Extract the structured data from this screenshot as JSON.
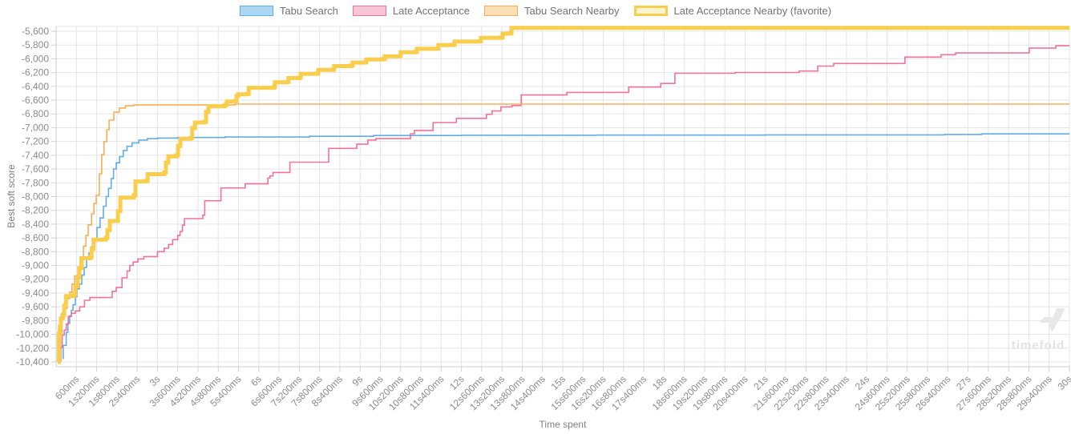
{
  "watermark": {
    "text": "timefold"
  },
  "chart_data": {
    "type": "line",
    "title": "",
    "xlabel": "Time spent",
    "ylabel": "Best soft score",
    "line_style": "step-after",
    "grid": true,
    "legend_position": "top",
    "grid_color": "#e5e5e5",
    "axis_color": "#cfcfcf",
    "tick_text_color": "#8b8b8b",
    "xlim": [
      0,
      30
    ],
    "ylim": [
      -10470,
      -5500
    ],
    "x_ticks": [
      {
        "t": 0.6,
        "label": "600ms"
      },
      {
        "t": 1.2,
        "label": "1s200ms"
      },
      {
        "t": 1.8,
        "label": "1s800ms"
      },
      {
        "t": 2.4,
        "label": "2s400ms"
      },
      {
        "t": 3,
        "label": "3s"
      },
      {
        "t": 3.6,
        "label": "3s600ms"
      },
      {
        "t": 4.2,
        "label": "4s200ms"
      },
      {
        "t": 4.8,
        "label": "4s800ms"
      },
      {
        "t": 5.4,
        "label": "5s400ms"
      },
      {
        "t": 6,
        "label": "6s"
      },
      {
        "t": 6.6,
        "label": "6s600ms"
      },
      {
        "t": 7.2,
        "label": "7s200ms"
      },
      {
        "t": 7.8,
        "label": "7s800ms"
      },
      {
        "t": 8.4,
        "label": "8s400ms"
      },
      {
        "t": 9,
        "label": "9s"
      },
      {
        "t": 9.6,
        "label": "9s600ms"
      },
      {
        "t": 10.2,
        "label": "10s200ms"
      },
      {
        "t": 10.8,
        "label": "10s800ms"
      },
      {
        "t": 11.4,
        "label": "11s400ms"
      },
      {
        "t": 12,
        "label": "12s"
      },
      {
        "t": 12.6,
        "label": "12s600ms"
      },
      {
        "t": 13.2,
        "label": "13s200ms"
      },
      {
        "t": 13.8,
        "label": "13s800ms"
      },
      {
        "t": 14.4,
        "label": "14s400ms"
      },
      {
        "t": 15,
        "label": "15s"
      },
      {
        "t": 15.6,
        "label": "15s600ms"
      },
      {
        "t": 16.2,
        "label": "16s200ms"
      },
      {
        "t": 16.8,
        "label": "16s800ms"
      },
      {
        "t": 17.4,
        "label": "17s400ms"
      },
      {
        "t": 18,
        "label": "18s"
      },
      {
        "t": 18.6,
        "label": "18s600ms"
      },
      {
        "t": 19.2,
        "label": "19s200ms"
      },
      {
        "t": 19.8,
        "label": "19s800ms"
      },
      {
        "t": 20.4,
        "label": "20s400ms"
      },
      {
        "t": 21,
        "label": "21s"
      },
      {
        "t": 21.6,
        "label": "21s600ms"
      },
      {
        "t": 22.2,
        "label": "22s200ms"
      },
      {
        "t": 22.8,
        "label": "22s800ms"
      },
      {
        "t": 23.4,
        "label": "23s400ms"
      },
      {
        "t": 24,
        "label": "24s"
      },
      {
        "t": 24.6,
        "label": "24s600ms"
      },
      {
        "t": 25.2,
        "label": "25s200ms"
      },
      {
        "t": 25.8,
        "label": "25s800ms"
      },
      {
        "t": 26.4,
        "label": "26s400ms"
      },
      {
        "t": 27,
        "label": "27s"
      },
      {
        "t": 27.6,
        "label": "27s600ms"
      },
      {
        "t": 28.2,
        "label": "28s200ms"
      },
      {
        "t": 28.8,
        "label": "28s800ms"
      },
      {
        "t": 29.4,
        "label": "29s400ms"
      },
      {
        "t": 30,
        "label": "30s"
      }
    ],
    "y_ticks": [
      {
        "v": -5600,
        "label": "-5,600"
      },
      {
        "v": -5800,
        "label": "-5,800"
      },
      {
        "v": -6000,
        "label": "-6,000"
      },
      {
        "v": -6200,
        "label": "-6,200"
      },
      {
        "v": -6400,
        "label": "-6,400"
      },
      {
        "v": -6600,
        "label": "-6,600"
      },
      {
        "v": -6800,
        "label": "-6,800"
      },
      {
        "v": -7000,
        "label": "-7,000"
      },
      {
        "v": -7200,
        "label": "-7,200"
      },
      {
        "v": -7400,
        "label": "-7,400"
      },
      {
        "v": -7600,
        "label": "-7,600"
      },
      {
        "v": -7800,
        "label": "-7,800"
      },
      {
        "v": -8000,
        "label": "-8,000"
      },
      {
        "v": -8200,
        "label": "-8,200"
      },
      {
        "v": -8400,
        "label": "-8,400"
      },
      {
        "v": -8600,
        "label": "-8,600"
      },
      {
        "v": -8800,
        "label": "-8,800"
      },
      {
        "v": -9000,
        "label": "-9,000"
      },
      {
        "v": -9200,
        "label": "-9,200"
      },
      {
        "v": -9400,
        "label": "-9,400"
      },
      {
        "v": -9600,
        "label": "-9,600"
      },
      {
        "v": -9800,
        "label": "-9,800"
      },
      {
        "v": -10000,
        "label": "-10,000"
      },
      {
        "v": -10200,
        "label": "-10,200"
      },
      {
        "v": -10400,
        "label": "-10,400"
      }
    ],
    "series": [
      {
        "name": "Tabu Search",
        "color": "#62ade5",
        "fill": "#abd6f5",
        "width": 1.6,
        "border": 1.5,
        "points": [
          [
            0.19,
            -10350
          ],
          [
            0.21,
            -10160
          ],
          [
            0.3,
            -9970
          ],
          [
            0.35,
            -9840
          ],
          [
            0.4,
            -9730
          ],
          [
            0.45,
            -9650
          ],
          [
            0.5,
            -9570
          ],
          [
            0.57,
            -9450
          ],
          [
            0.62,
            -9340
          ],
          [
            0.69,
            -9270
          ],
          [
            0.76,
            -9140
          ],
          [
            0.83,
            -9030
          ],
          [
            0.9,
            -8900
          ],
          [
            0.97,
            -8820
          ],
          [
            1.04,
            -8730
          ],
          [
            1.12,
            -8610
          ],
          [
            1.21,
            -8450
          ],
          [
            1.3,
            -8310
          ],
          [
            1.4,
            -8140
          ],
          [
            1.48,
            -8000
          ],
          [
            1.55,
            -7880
          ],
          [
            1.63,
            -7740
          ],
          [
            1.7,
            -7600
          ],
          [
            1.78,
            -7510
          ],
          [
            1.88,
            -7420
          ],
          [
            1.99,
            -7330
          ],
          [
            2.1,
            -7270
          ],
          [
            2.25,
            -7220
          ],
          [
            2.45,
            -7180
          ],
          [
            2.7,
            -7160
          ],
          [
            3.0,
            -7150
          ],
          [
            3.6,
            -7142
          ],
          [
            5.0,
            -7135
          ],
          [
            7.5,
            -7125
          ],
          [
            9.4,
            -7113
          ],
          [
            12.0,
            -7110
          ],
          [
            16.0,
            -7107
          ],
          [
            21.0,
            -7104
          ],
          [
            26.3,
            -7098
          ],
          [
            27.4,
            -7090
          ]
        ]
      },
      {
        "name": "Late Acceptance",
        "color": "#f1729a",
        "fill": "#f9c4d4",
        "width": 1.6,
        "border": 1.5,
        "points": [
          [
            0.1,
            -10380
          ],
          [
            0.14,
            -10190
          ],
          [
            0.18,
            -10010
          ],
          [
            0.24,
            -9940
          ],
          [
            0.3,
            -9850
          ],
          [
            0.36,
            -9740
          ],
          [
            0.45,
            -9695
          ],
          [
            0.57,
            -9660
          ],
          [
            0.7,
            -9600
          ],
          [
            0.84,
            -9505
          ],
          [
            1.0,
            -9465
          ],
          [
            1.66,
            -9375
          ],
          [
            1.78,
            -9320
          ],
          [
            1.95,
            -9180
          ],
          [
            2.1,
            -9080
          ],
          [
            2.18,
            -9000
          ],
          [
            2.28,
            -8950
          ],
          [
            2.42,
            -8905
          ],
          [
            2.6,
            -8870
          ],
          [
            3.0,
            -8800
          ],
          [
            3.2,
            -8750
          ],
          [
            3.33,
            -8695
          ],
          [
            3.45,
            -8625
          ],
          [
            3.6,
            -8565
          ],
          [
            3.67,
            -8505
          ],
          [
            3.74,
            -8415
          ],
          [
            3.8,
            -8320
          ],
          [
            4.34,
            -8270
          ],
          [
            4.4,
            -8060
          ],
          [
            4.88,
            -7875
          ],
          [
            5.6,
            -7815
          ],
          [
            6.27,
            -7730
          ],
          [
            6.33,
            -7700
          ],
          [
            6.42,
            -7650
          ],
          [
            6.92,
            -7500
          ],
          [
            8.07,
            -7300
          ],
          [
            8.9,
            -7240
          ],
          [
            9.23,
            -7180
          ],
          [
            9.47,
            -7158
          ],
          [
            10.49,
            -7088
          ],
          [
            10.61,
            -7040
          ],
          [
            11.16,
            -6925
          ],
          [
            11.85,
            -6865
          ],
          [
            12.74,
            -6805
          ],
          [
            12.91,
            -6758
          ],
          [
            13.17,
            -6700
          ],
          [
            13.5,
            -6678
          ],
          [
            13.77,
            -6525
          ],
          [
            15.12,
            -6488
          ],
          [
            16.95,
            -6410
          ],
          [
            17.9,
            -6358
          ],
          [
            18.32,
            -6210
          ],
          [
            20.1,
            -6198
          ],
          [
            22.0,
            -6178
          ],
          [
            22.55,
            -6105
          ],
          [
            23.02,
            -6068
          ],
          [
            25.13,
            -5975
          ],
          [
            26.2,
            -5940
          ],
          [
            26.63,
            -5915
          ],
          [
            28.81,
            -5845
          ],
          [
            29.6,
            -5810
          ]
        ]
      },
      {
        "name": "Tabu Search Nearby",
        "color": "#fbad55",
        "fill": "#fddfb5",
        "width": 1.6,
        "border": 1.5,
        "points": [
          [
            0.1,
            -10400
          ],
          [
            0.13,
            -10010
          ],
          [
            0.17,
            -9770
          ],
          [
            0.24,
            -9620
          ],
          [
            0.33,
            -9480
          ],
          [
            0.4,
            -9385
          ],
          [
            0.47,
            -9270
          ],
          [
            0.55,
            -9150
          ],
          [
            0.64,
            -9030
          ],
          [
            0.71,
            -8880
          ],
          [
            0.81,
            -8720
          ],
          [
            0.88,
            -8565
          ],
          [
            0.95,
            -8410
          ],
          [
            1.05,
            -8250
          ],
          [
            1.12,
            -8100
          ],
          [
            1.19,
            -7980
          ],
          [
            1.28,
            -7670
          ],
          [
            1.35,
            -7390
          ],
          [
            1.42,
            -7200
          ],
          [
            1.5,
            -7030
          ],
          [
            1.57,
            -6890
          ],
          [
            1.71,
            -6775
          ],
          [
            1.87,
            -6715
          ],
          [
            2.05,
            -6682
          ],
          [
            2.3,
            -6670
          ],
          [
            5.3,
            -6658
          ]
        ]
      },
      {
        "name": "Late Acceptance Nearby (favorite)",
        "color": "#f9ce4d",
        "fill": "#fcf3d0",
        "width": 5,
        "border": 3,
        "points": [
          [
            0.05,
            -10400
          ],
          [
            0.08,
            -9990
          ],
          [
            0.11,
            -9890
          ],
          [
            0.14,
            -9770
          ],
          [
            0.19,
            -9715
          ],
          [
            0.24,
            -9585
          ],
          [
            0.29,
            -9445
          ],
          [
            0.52,
            -9420
          ],
          [
            0.57,
            -9300
          ],
          [
            0.64,
            -9175
          ],
          [
            0.69,
            -9035
          ],
          [
            0.76,
            -8895
          ],
          [
            1.0,
            -8880
          ],
          [
            1.05,
            -8760
          ],
          [
            1.11,
            -8625
          ],
          [
            1.47,
            -8600
          ],
          [
            1.52,
            -8485
          ],
          [
            1.59,
            -8355
          ],
          [
            1.83,
            -8210
          ],
          [
            1.9,
            -8015
          ],
          [
            2.3,
            -7980
          ],
          [
            2.35,
            -7780
          ],
          [
            2.66,
            -7770
          ],
          [
            2.71,
            -7675
          ],
          [
            3.2,
            -7650
          ],
          [
            3.25,
            -7510
          ],
          [
            3.32,
            -7415
          ],
          [
            3.56,
            -7400
          ],
          [
            3.61,
            -7265
          ],
          [
            3.68,
            -7160
          ],
          [
            3.99,
            -7147
          ],
          [
            4.03,
            -7005
          ],
          [
            4.11,
            -6925
          ],
          [
            4.39,
            -6913
          ],
          [
            4.44,
            -6770
          ],
          [
            4.51,
            -6690
          ],
          [
            4.98,
            -6678
          ],
          [
            5.03,
            -6655
          ],
          [
            5.06,
            -6620
          ],
          [
            5.29,
            -6615
          ],
          [
            5.34,
            -6540
          ],
          [
            5.39,
            -6515
          ],
          [
            5.65,
            -6510
          ],
          [
            5.7,
            -6420
          ],
          [
            6.46,
            -6400
          ],
          [
            6.48,
            -6340
          ],
          [
            6.83,
            -6335
          ],
          [
            6.88,
            -6280
          ],
          [
            7.19,
            -6275
          ],
          [
            7.24,
            -6220
          ],
          [
            7.71,
            -6215
          ],
          [
            7.76,
            -6160
          ],
          [
            8.19,
            -6155
          ],
          [
            8.23,
            -6105
          ],
          [
            8.73,
            -6100
          ],
          [
            8.78,
            -6055
          ],
          [
            9.14,
            -6050
          ],
          [
            9.18,
            -6010
          ],
          [
            9.68,
            -6005
          ],
          [
            9.73,
            -5965
          ],
          [
            10.16,
            -5960
          ],
          [
            10.2,
            -5905
          ],
          [
            10.63,
            -5900
          ],
          [
            10.68,
            -5855
          ],
          [
            11.27,
            -5850
          ],
          [
            11.32,
            -5800
          ],
          [
            11.75,
            -5795
          ],
          [
            11.8,
            -5750
          ],
          [
            12.53,
            -5745
          ],
          [
            12.58,
            -5695
          ],
          [
            13.17,
            -5690
          ],
          [
            13.22,
            -5635
          ],
          [
            13.43,
            -5630
          ],
          [
            13.48,
            -5550
          ]
        ]
      }
    ]
  }
}
